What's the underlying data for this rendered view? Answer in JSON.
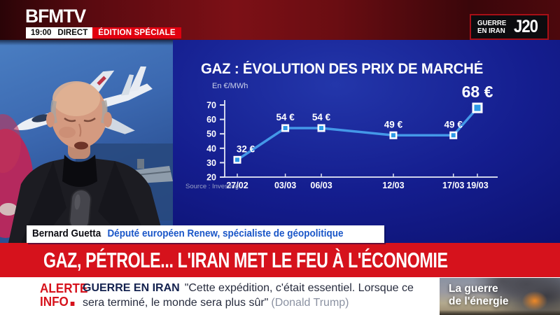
{
  "header": {
    "logo": "BFMTV",
    "time": "19:00",
    "direct": "DIRECT",
    "edition": "ÉDITION SPÉCIALE",
    "badge": {
      "line1": "GUERRE",
      "line2": "EN IRAN",
      "day": "J20"
    }
  },
  "chart_data": {
    "type": "line",
    "title": "GAZ : ÉVOLUTION DES PRIX DE MARCHÉ",
    "unit_label": "En €/MWh",
    "source": "Source : Investing",
    "x": [
      "27/02",
      "03/03",
      "06/03",
      "12/03",
      "17/03",
      "19/03"
    ],
    "values": [
      32,
      54,
      54,
      49,
      49,
      68
    ],
    "point_labels": [
      "32 €",
      "54 €",
      "54 €",
      "49 €",
      "49 €",
      "68 €"
    ],
    "ylim": [
      20,
      70
    ],
    "yticks": [
      70,
      60,
      50,
      40,
      30,
      20
    ],
    "grid": false,
    "time_proportional_x": true,
    "highlight_last_point": true,
    "line_color": "#4498e8",
    "marker_fill": "#2e9be6",
    "marker_stroke": "#ffffff"
  },
  "speaker": {
    "name": "Bernard Guetta",
    "role": "Député européen Renew, spécialiste de géopolitique"
  },
  "headline": {
    "text": "GAZ, PÉTROLE... L'IRAN MET LE FEU À L'ÉCONOMIE"
  },
  "ticker": {
    "alert_line1": "ALERTE",
    "alert_line2": "INFO",
    "topic": "GUERRE EN IRAN",
    "quote": "\"Cette expédition, c'était essentiel. Lorsque ce sera terminé, le monde sera plus sûr\"",
    "attribution": "(Donald Trump)"
  },
  "energy_panel": {
    "line1": "La guerre",
    "line2": "de l'énergie"
  },
  "colors": {
    "brand_red": "#d6121c",
    "edition_red": "#e1000f",
    "panel_navy": "#141d8e",
    "chart_line": "#4498e8",
    "role_blue": "#1a56c8"
  }
}
